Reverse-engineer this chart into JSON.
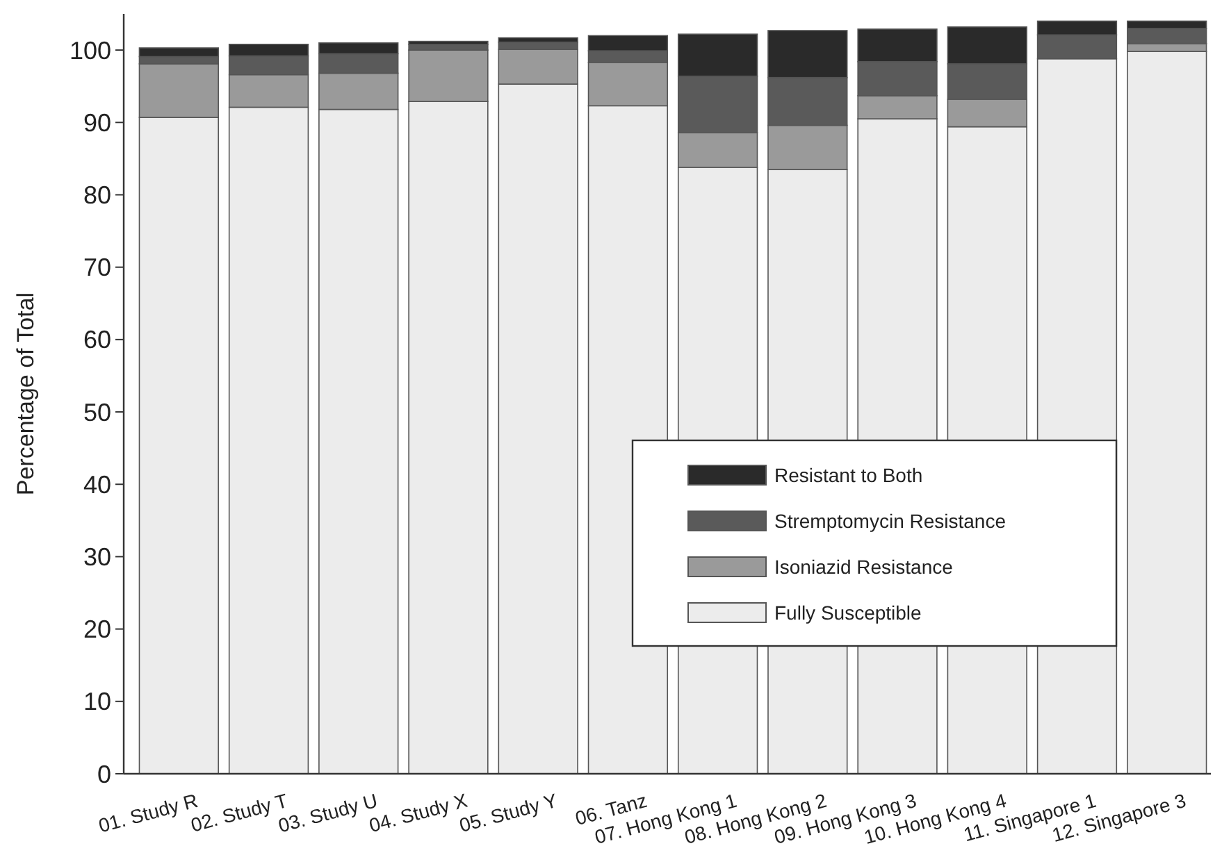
{
  "chart_data": {
    "type": "bar",
    "stacked": true,
    "ylabel": "Percentage of Total",
    "categories": [
      "01. Study R",
      "02. Study T",
      "03. Study U",
      "04. Study X",
      "05. Study Y",
      "06. Tanz",
      "07. Hong Kong 1",
      "08. Hong Kong 2",
      "09. Hong Kong 3",
      "10. Hong Kong 4",
      "11. Singapore 1",
      "12. Singapore 3"
    ],
    "series": [
      {
        "name": "Fully Susceptible",
        "color": "#ececec",
        "values": [
          90.7,
          92.1,
          91.8,
          92.9,
          95.3,
          92.3,
          83.8,
          83.5,
          90.5,
          89.4,
          98.8,
          99.8
        ]
      },
      {
        "name": "Isoniazid Resistance",
        "color": "#9a9a9a",
        "values": [
          7.4,
          4.5,
          5,
          7.1,
          4.8,
          6,
          4.8,
          6.1,
          3.2,
          3.8,
          0,
          1.1
        ]
      },
      {
        "name": "Stremptomycin Resistance",
        "color": "#5a5a5a",
        "values": [
          1,
          2.6,
          2.7,
          0.8,
          1,
          1.6,
          7.8,
          6.6,
          4.7,
          4.9,
          3.3,
          2.1
        ]
      },
      {
        "name": "Resistant to Both",
        "color": "#2a2a2a",
        "values": [
          1.2,
          1.6,
          1.5,
          0.4,
          0.6,
          2.1,
          5.8,
          6.5,
          4.5,
          5.1,
          1.9,
          1
        ]
      }
    ],
    "ylim": [
      0,
      105
    ],
    "yticks": [
      0,
      10,
      20,
      30,
      40,
      50,
      60,
      70,
      80,
      90,
      100
    ],
    "grid": false,
    "legend": "right"
  }
}
